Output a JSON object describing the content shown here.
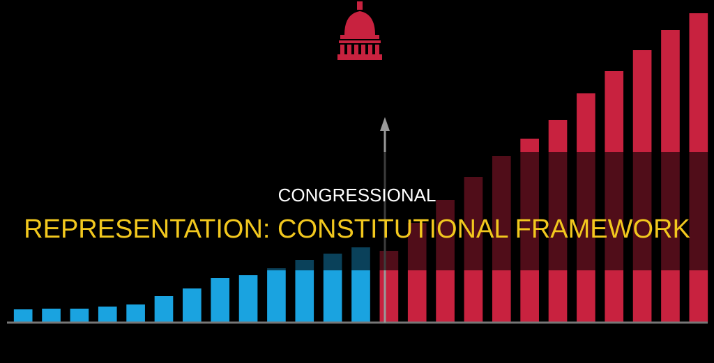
{
  "chart_data": {
    "type": "bar",
    "title": "CONGRESSIONAL",
    "subtitle": "REPRESENTATION: CONSTITUTIONAL FRAMEWORK",
    "categories": [
      null,
      null,
      null,
      null,
      null,
      null,
      null,
      null,
      null,
      null,
      null,
      null,
      null,
      null,
      null,
      null,
      null,
      null,
      null,
      null,
      null,
      null,
      null,
      null,
      null
    ],
    "series": [
      {
        "color": "#1aa3e0",
        "values": [
          19,
          20,
          20,
          23,
          26,
          38,
          49,
          64,
          68,
          78,
          90,
          99,
          108,
          null,
          null,
          null,
          null,
          null,
          null,
          null,
          null,
          null,
          null,
          null,
          null
        ]
      },
      {
        "color": "#c8223f",
        "values": [
          null,
          null,
          null,
          null,
          null,
          null,
          null,
          null,
          null,
          null,
          null,
          null,
          null,
          103,
          143,
          176,
          209,
          239,
          264,
          291,
          329,
          361,
          391,
          420,
          444
        ]
      }
    ],
    "ylim": [
      0,
      460
    ]
  }
}
